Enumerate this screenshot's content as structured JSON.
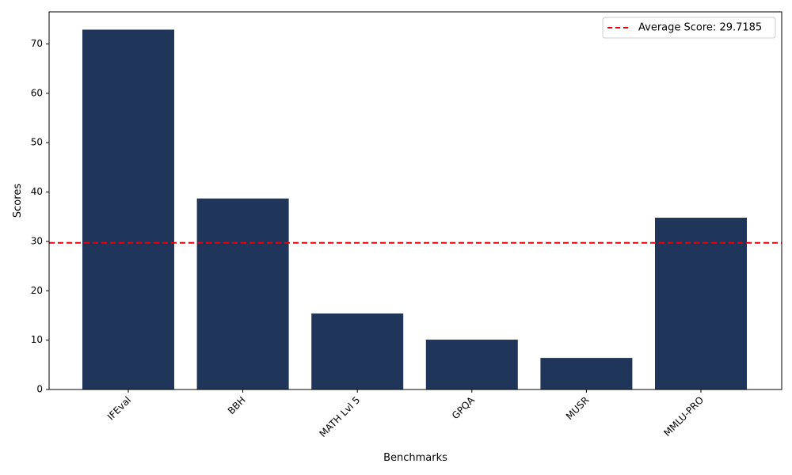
{
  "chart_data": {
    "type": "bar",
    "categories": [
      "IFEval",
      "BBH",
      "MATH Lvl 5",
      "GPQA",
      "MUSR",
      "MMLU-PRO"
    ],
    "values": [
      72.9,
      38.7,
      15.4,
      10.1,
      6.4,
      34.8
    ],
    "xlabel": "Benchmarks",
    "ylabel": "Scores",
    "ylim": [
      0,
      76.5
    ],
    "yticks": [
      0,
      10,
      20,
      30,
      40,
      50,
      60,
      70
    ],
    "bar_color": "#1f365a",
    "reference_line": {
      "value": 29.7185,
      "label": "Average Score: 29.7185",
      "color": "#e8000b",
      "style": "dashed"
    },
    "legend_position": "top-right",
    "grid": false
  }
}
